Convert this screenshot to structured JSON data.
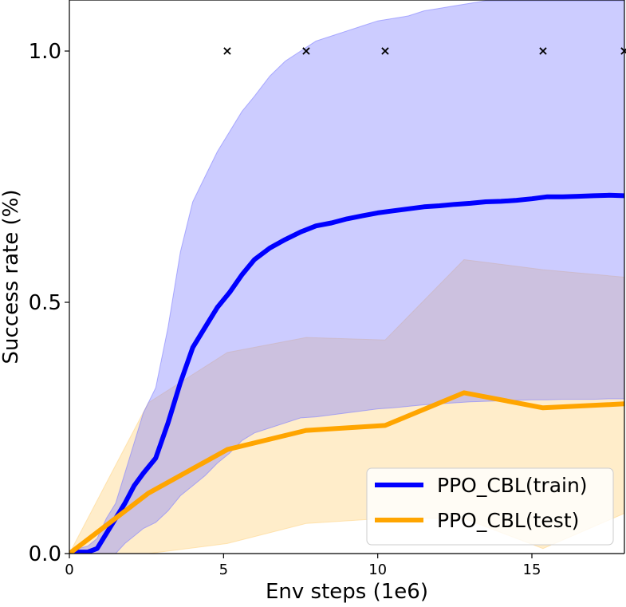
{
  "chart_data": {
    "type": "line",
    "title": "",
    "xlabel": "Env steps (1e6)",
    "ylabel": "Success rate (%)",
    "xlim": [
      0,
      18
    ],
    "ylim": [
      0,
      1.1
    ],
    "xticks": [
      0,
      5,
      10,
      15
    ],
    "yticks": [
      0.0,
      0.5,
      1.0
    ],
    "xtick_labels": [
      "0",
      "5",
      "10",
      "15"
    ],
    "ytick_labels": [
      "0.0",
      "0.5",
      "1.0"
    ],
    "grid": false,
    "legend_position": "bottom-right",
    "series": [
      {
        "name": "PPO_CBL(train)",
        "color": "#0000ff",
        "band_color": "#8080ff",
        "x": [
          0,
          0.3,
          0.6,
          0.9,
          1.2,
          1.5,
          1.8,
          2.1,
          2.4,
          2.8,
          3.2,
          3.6,
          4.0,
          4.4,
          4.8,
          5.2,
          5.6,
          6.0,
          6.5,
          7.0,
          7.5,
          8.0,
          8.5,
          9.0,
          9.5,
          10.0,
          10.5,
          11.0,
          11.5,
          12.0,
          12.5,
          13.0,
          13.5,
          14.0,
          14.5,
          15.0,
          15.5,
          16.0,
          16.5,
          17.0,
          17.5,
          18.0
        ],
        "values": [
          0,
          0.003,
          0.003,
          0.01,
          0.04,
          0.07,
          0.1,
          0.135,
          0.16,
          0.19,
          0.26,
          0.34,
          0.41,
          0.45,
          0.49,
          0.52,
          0.555,
          0.585,
          0.608,
          0.625,
          0.64,
          0.652,
          0.658,
          0.666,
          0.672,
          0.678,
          0.682,
          0.686,
          0.69,
          0.692,
          0.695,
          0.697,
          0.7,
          0.701,
          0.703,
          0.706,
          0.71,
          0.71,
          0.711,
          0.712,
          0.713,
          0.712
        ],
        "lower": [
          0,
          0,
          0,
          0,
          0,
          0,
          0.02,
          0.035,
          0.05,
          0.062,
          0.085,
          0.115,
          0.135,
          0.155,
          0.18,
          0.2,
          0.225,
          0.24,
          0.25,
          0.26,
          0.27,
          0.272,
          0.276,
          0.28,
          0.284,
          0.288,
          0.29,
          0.293,
          0.296,
          0.298,
          0.3,
          0.302,
          0.303,
          0.304,
          0.305,
          0.306,
          0.306,
          0.307,
          0.307,
          0.307,
          0.308,
          0.308
        ],
        "upper": [
          0,
          0.01,
          0.015,
          0.03,
          0.07,
          0.1,
          0.16,
          0.22,
          0.28,
          0.33,
          0.45,
          0.6,
          0.7,
          0.75,
          0.8,
          0.84,
          0.88,
          0.91,
          0.95,
          0.98,
          1.0,
          1.02,
          1.03,
          1.04,
          1.05,
          1.06,
          1.065,
          1.07,
          1.08,
          1.085,
          1.09,
          1.095,
          1.1,
          1.1,
          1.1,
          1.1,
          1.1,
          1.1,
          1.1,
          1.1,
          1.1,
          1.1
        ]
      },
      {
        "name": "PPO_CBL(test)",
        "color": "#ffa500",
        "band_color": "#ffd68a",
        "x": [
          0,
          2.56,
          5.12,
          7.68,
          10.24,
          12.8,
          15.36,
          18.0
        ],
        "values": [
          0,
          0.12,
          0.207,
          0.245,
          0.255,
          0.32,
          0.29,
          0.298
        ],
        "lower": [
          0,
          0,
          0.02,
          0.06,
          0.07,
          0.07,
          0.01,
          0.08
        ],
        "upper": [
          0,
          0.3,
          0.4,
          0.43,
          0.425,
          0.585,
          0.565,
          0.55
        ]
      }
    ],
    "markers": {
      "symbol": "×",
      "x": [
        5.12,
        7.68,
        10.24,
        15.36,
        18.0
      ],
      "y": [
        1.0,
        1.0,
        1.0,
        1.0,
        1.0
      ]
    }
  }
}
